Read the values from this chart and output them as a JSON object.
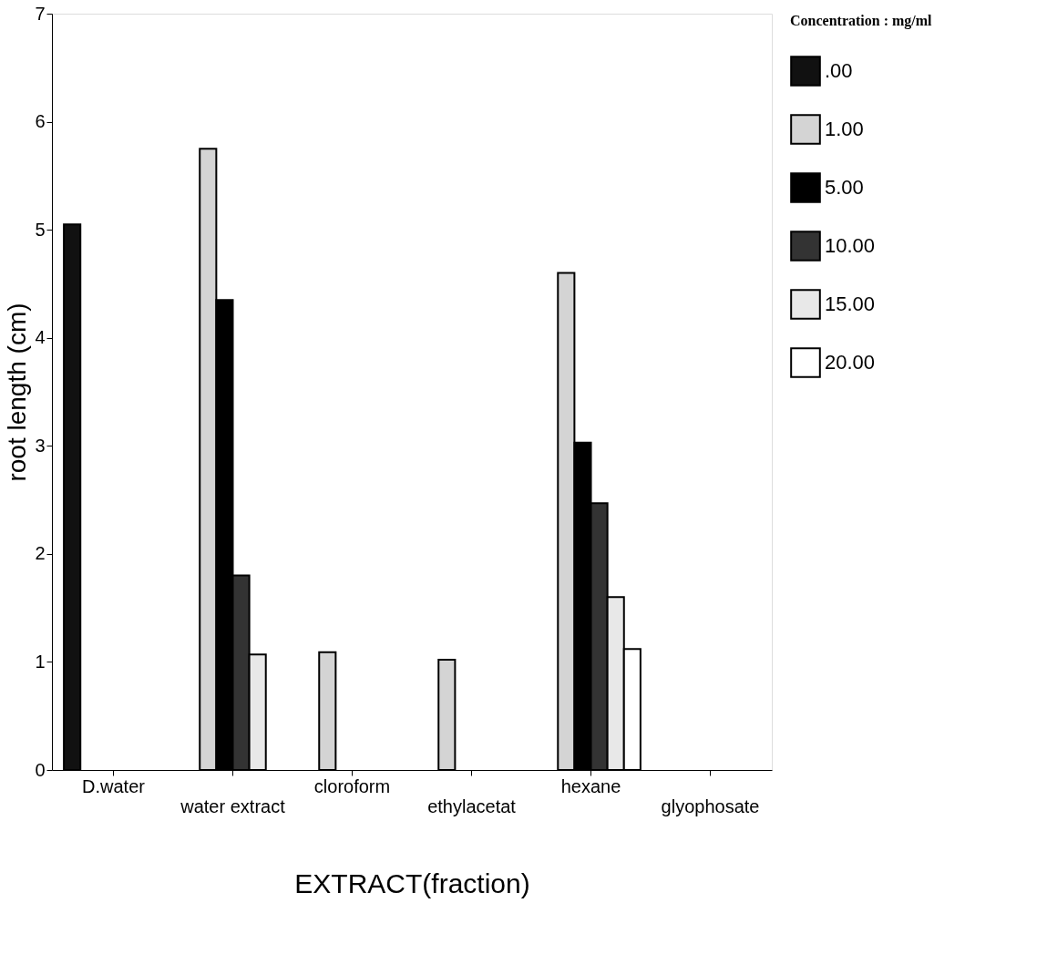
{
  "chart_data": {
    "type": "bar",
    "xlabel": "EXTRACT(fraction)",
    "ylabel": "root length (cm)",
    "legend_title": "Concentration : mg/ml",
    "categories": [
      "D.water",
      "water extract",
      "cloroform",
      "ethylacetat",
      "hexane",
      "glyophosate"
    ],
    "series": [
      {
        "name": ".00",
        "color": "#111111",
        "values": [
          5.05,
          null,
          null,
          null,
          null,
          null
        ]
      },
      {
        "name": "1.00",
        "color": "#d4d4d4",
        "values": [
          null,
          5.75,
          1.09,
          1.02,
          4.6,
          null
        ]
      },
      {
        "name": "5.00",
        "color": "#000000",
        "values": [
          null,
          4.35,
          null,
          null,
          3.03,
          null
        ]
      },
      {
        "name": "10.00",
        "color": "#333333",
        "values": [
          null,
          1.8,
          null,
          null,
          2.47,
          null
        ]
      },
      {
        "name": "15.00",
        "color": "#e8e8e8",
        "values": [
          null,
          1.07,
          null,
          null,
          1.6,
          null
        ]
      },
      {
        "name": "20.00",
        "color": "#ffffff",
        "values": [
          null,
          null,
          null,
          null,
          1.12,
          null
        ]
      }
    ],
    "ylim": [
      0,
      7
    ],
    "yticks": [
      0,
      1,
      2,
      3,
      4,
      5,
      6,
      7
    ],
    "grid": false,
    "legend": "right"
  }
}
